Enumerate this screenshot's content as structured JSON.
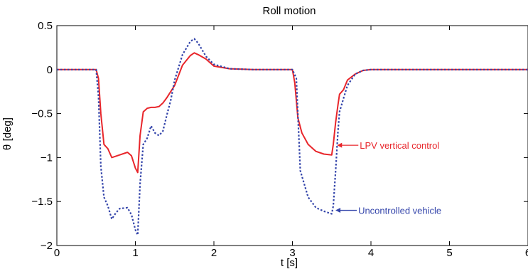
{
  "chart_data": {
    "type": "line",
    "title": "Roll motion",
    "xlabel": "t [s]",
    "ylabel": "θ [deg]",
    "xlim": [
      0,
      6
    ],
    "ylim": [
      -2,
      0.5
    ],
    "xticks": [
      0,
      1,
      2,
      3,
      4,
      5,
      6
    ],
    "xtick_labels": [
      "0",
      "1",
      "2",
      "3",
      "4",
      "5",
      "6"
    ],
    "yticks": [
      0.5,
      0,
      -0.5,
      -1,
      -1.5,
      -2
    ],
    "ytick_labels": [
      "0.5",
      "0",
      "−0.5",
      "−1",
      "−1.5",
      "−2"
    ],
    "grid": false,
    "series": [
      {
        "name": "LPV vertical control",
        "color": "#e8262b",
        "style": "solid",
        "x": [
          0,
          0.5,
          0.53,
          0.56,
          0.6,
          0.65,
          0.7,
          0.8,
          0.9,
          0.95,
          1.0,
          1.03,
          1.06,
          1.1,
          1.15,
          1.2,
          1.25,
          1.3,
          1.35,
          1.4,
          1.5,
          1.6,
          1.7,
          1.75,
          1.8,
          1.9,
          2.0,
          2.2,
          2.5,
          2.9,
          3.0,
          3.03,
          3.07,
          3.12,
          3.2,
          3.3,
          3.4,
          3.5,
          3.52,
          3.55,
          3.58,
          3.6,
          3.65,
          3.7,
          3.8,
          3.9,
          4.0,
          5.0,
          6.0
        ],
        "y": [
          0,
          0,
          -0.1,
          -0.5,
          -0.85,
          -0.9,
          -1.0,
          -0.97,
          -0.94,
          -0.98,
          -1.12,
          -1.17,
          -0.75,
          -0.48,
          -0.44,
          -0.43,
          -0.43,
          -0.42,
          -0.38,
          -0.32,
          -0.18,
          0.05,
          0.16,
          0.19,
          0.17,
          0.12,
          0.04,
          0.01,
          0,
          0,
          0,
          -0.15,
          -0.55,
          -0.72,
          -0.85,
          -0.93,
          -0.96,
          -0.97,
          -0.85,
          -0.6,
          -0.4,
          -0.28,
          -0.23,
          -0.12,
          -0.05,
          -0.01,
          0,
          0,
          0
        ]
      },
      {
        "name": "Uncontrolled vehicle",
        "color": "#3344aa",
        "style": "dotted",
        "x": [
          0,
          0.5,
          0.53,
          0.56,
          0.6,
          0.65,
          0.7,
          0.75,
          0.8,
          0.9,
          0.95,
          1.0,
          1.03,
          1.06,
          1.1,
          1.15,
          1.2,
          1.25,
          1.3,
          1.35,
          1.4,
          1.45,
          1.5,
          1.6,
          1.7,
          1.75,
          1.8,
          1.9,
          2.0,
          2.2,
          2.5,
          2.9,
          3.0,
          3.05,
          3.1,
          3.15,
          3.2,
          3.3,
          3.4,
          3.5,
          3.52,
          3.55,
          3.58,
          3.6,
          3.65,
          3.7,
          3.8,
          3.9,
          4.0,
          5.0,
          6.0
        ],
        "y": [
          0,
          0,
          -0.3,
          -1.1,
          -1.45,
          -1.55,
          -1.7,
          -1.63,
          -1.58,
          -1.57,
          -1.65,
          -1.82,
          -1.88,
          -1.3,
          -0.85,
          -0.78,
          -0.64,
          -0.72,
          -0.75,
          -0.7,
          -0.52,
          -0.35,
          -0.12,
          0.17,
          0.32,
          0.35,
          0.3,
          0.15,
          0.06,
          0.01,
          0,
          0,
          0,
          -0.1,
          -1.15,
          -1.3,
          -1.45,
          -1.57,
          -1.61,
          -1.64,
          -1.55,
          -1.15,
          -0.7,
          -0.48,
          -0.33,
          -0.18,
          -0.05,
          -0.01,
          0,
          0,
          0
        ]
      }
    ],
    "annotations": [
      {
        "text": "LPV vertical control",
        "series": "LPV vertical control",
        "point": [
          3.55,
          -0.86
        ]
      },
      {
        "text": "Uncontrolled vehicle",
        "series": "Uncontrolled vehicle",
        "point": [
          3.53,
          -1.6
        ]
      }
    ]
  }
}
